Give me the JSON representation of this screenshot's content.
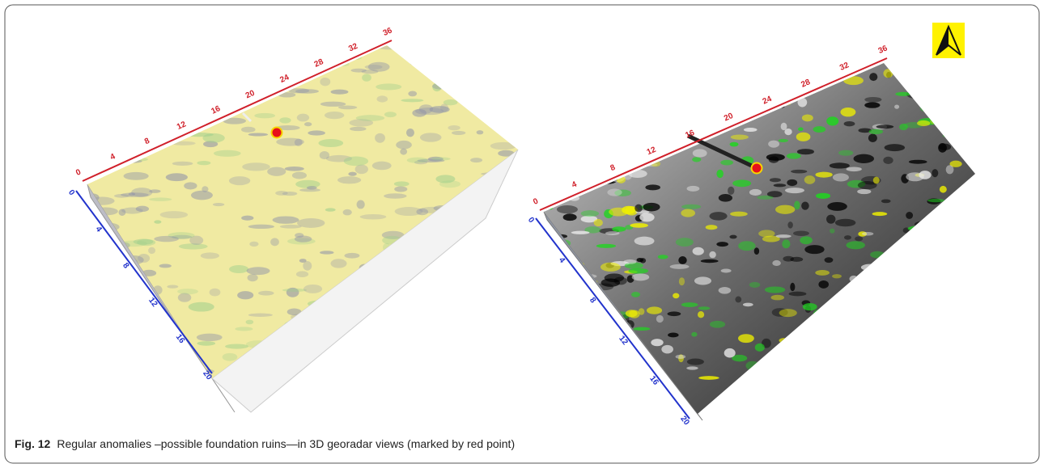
{
  "figure": {
    "panels": [
      {
        "along_ticks": [
          "0",
          "4",
          "8",
          "12",
          "16",
          "20",
          "24",
          "28",
          "32",
          "36"
        ],
        "across_ticks": [
          "0",
          "4",
          "8",
          "12",
          "16",
          "20"
        ]
      },
      {
        "along_ticks": [
          "0",
          "4",
          "8",
          "12",
          "16",
          "20",
          "24",
          "28",
          "32",
          "36"
        ],
        "across_ticks": [
          "0",
          "4",
          "8",
          "12",
          "16",
          "20"
        ]
      }
    ],
    "caption": {
      "label": "Fig. 12",
      "text": "Regular anomalies –possible foundation ruins—in 3D georadar views (marked by red point)"
    }
  }
}
